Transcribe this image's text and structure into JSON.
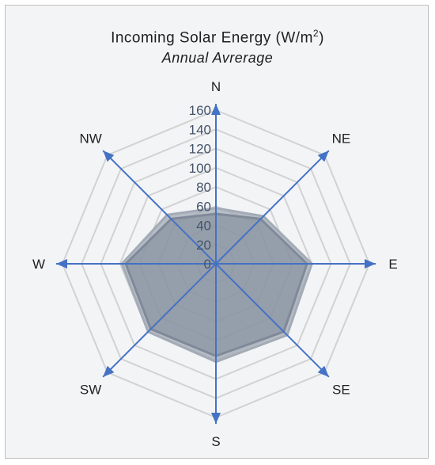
{
  "chart_data": {
    "type": "radar",
    "title_main": "Incoming Solar Energy (W/m",
    "title_sup": "2",
    "title_end": ")",
    "subtitle": "Annual Avrerage",
    "directions": [
      "N",
      "NE",
      "E",
      "SE",
      "S",
      "SW",
      "W",
      "NW"
    ],
    "ticks": [
      "0",
      "20",
      "40",
      "60",
      "80",
      "100",
      "120",
      "140",
      "160"
    ],
    "rmax": 160,
    "series": [
      {
        "values": [
          58,
          70,
          100,
          105,
          102,
          100,
          98,
          72
        ],
        "color": "#a3abb6"
      },
      {
        "values": [
          52,
          66,
          95,
          100,
          96,
          96,
          94,
          66
        ],
        "color": "#7f8999"
      }
    ],
    "colors": {
      "grid": "#d2d2d2",
      "axis": "#4472c4"
    }
  }
}
